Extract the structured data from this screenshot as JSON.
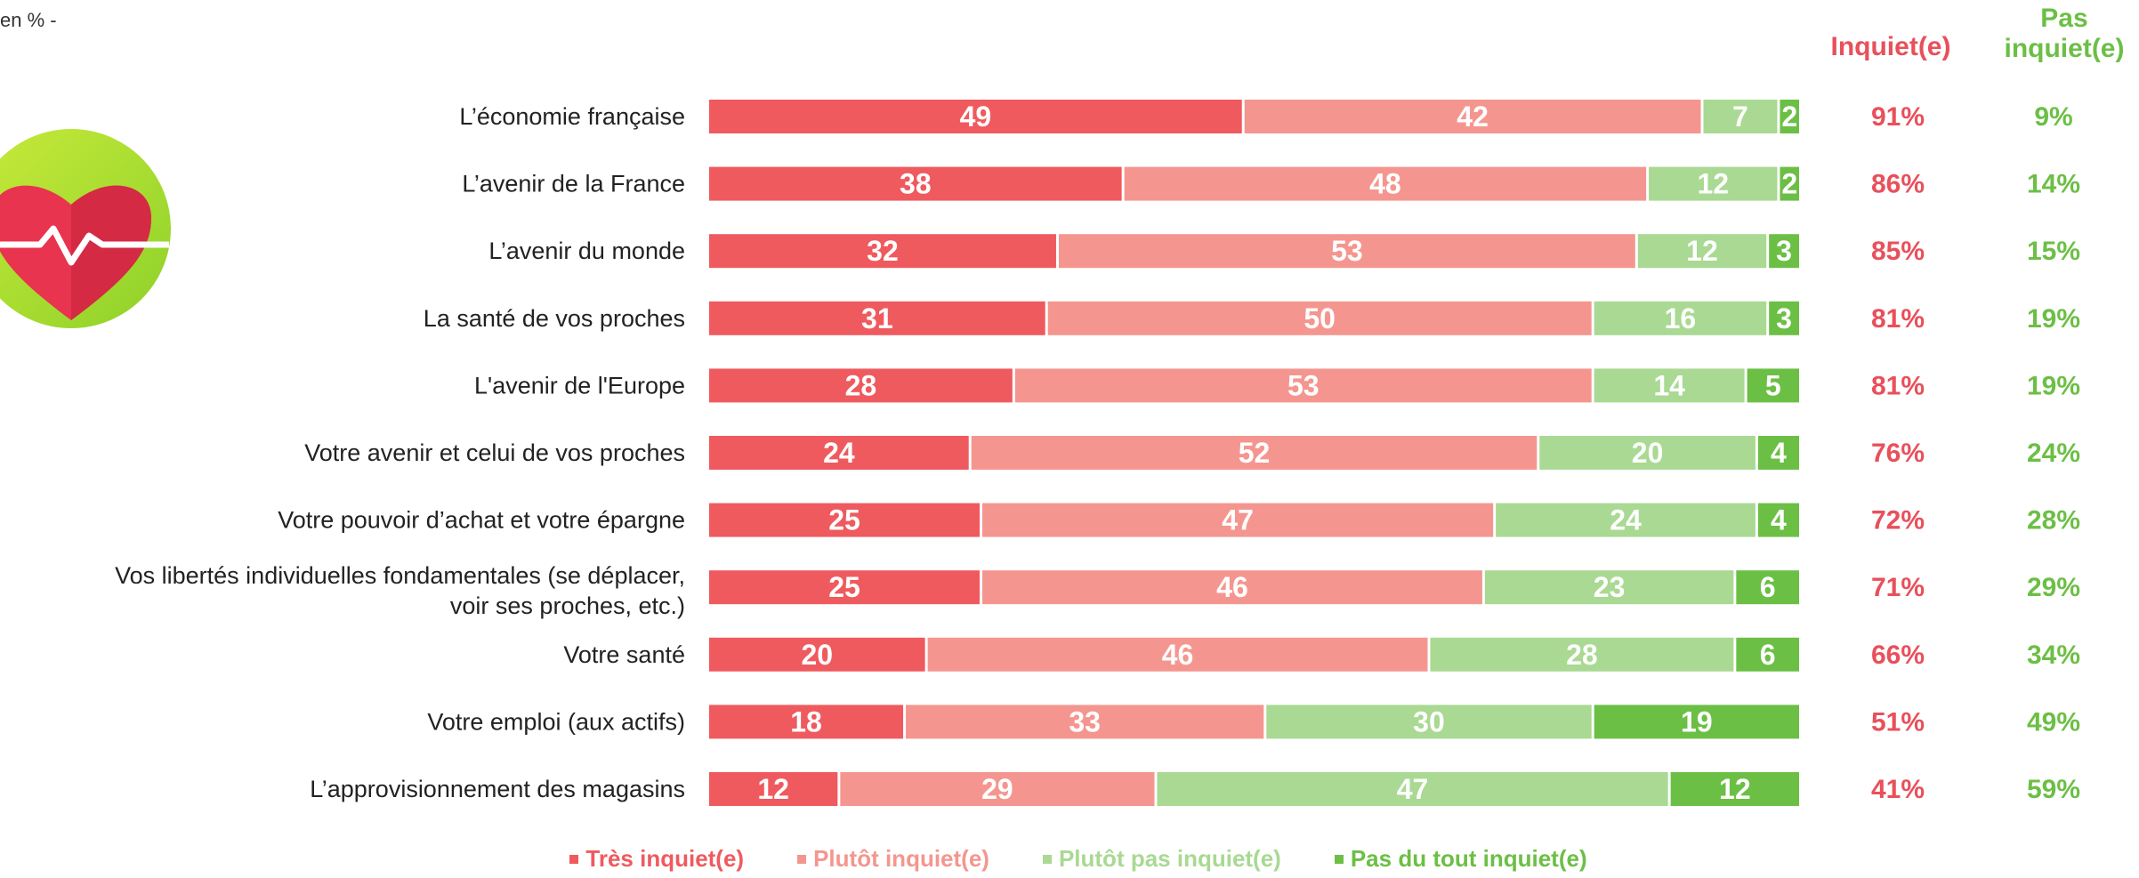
{
  "unit_note": "en % -",
  "col_headers": {
    "inquiet": "Inquiet(e)",
    "pas_inquiet": "Pas\ninquiet(e)"
  },
  "colors": {
    "tres_inquiet": "#ef5a5f",
    "plutot_inquiet": "#f4968f",
    "plutot_pas_inquiet": "#a9d992",
    "pas_du_tout_inquiet": "#6cbf45",
    "inquiet_text": "#e8505b",
    "pas_inquiet_text": "#6cbf45"
  },
  "legend": [
    {
      "label": "Très inquiet(e)",
      "color": "#ef5a5f"
    },
    {
      "label": "Plutôt inquiet(e)",
      "color": "#f4968f"
    },
    {
      "label": "Plutôt pas inquiet(e)",
      "color": "#a9d992"
    },
    {
      "label": "Pas du tout inquiet(e)",
      "color": "#6cbf45"
    }
  ],
  "chart_data": {
    "type": "bar",
    "orientation": "horizontal-stacked",
    "categories": [
      "L’économie française",
      "L’avenir de la France",
      "L’avenir du monde",
      "La santé de vos proches",
      "L'avenir de l'Europe",
      "Votre avenir et celui de vos proches",
      "Votre pouvoir d’achat et votre épargne",
      "Vos libertés individuelles fondamentales (se déplacer, voir ses proches, etc.)",
      "Votre santé",
      "Votre emploi (aux actifs)",
      "L’approvisionnement des magasins"
    ],
    "series": [
      {
        "name": "Très inquiet(e)",
        "values": [
          49,
          38,
          32,
          31,
          28,
          24,
          25,
          25,
          20,
          18,
          12
        ]
      },
      {
        "name": "Plutôt inquiet(e)",
        "values": [
          42,
          48,
          53,
          50,
          53,
          52,
          47,
          46,
          46,
          33,
          29
        ]
      },
      {
        "name": "Plutôt pas inquiet(e)",
        "values": [
          7,
          12,
          12,
          16,
          14,
          20,
          24,
          23,
          28,
          30,
          47
        ]
      },
      {
        "name": "Pas du tout inquiet(e)",
        "values": [
          2,
          2,
          3,
          3,
          5,
          4,
          4,
          6,
          6,
          19,
          12
        ]
      }
    ],
    "totals_inquiet": [
      "91%",
      "86%",
      "85%",
      "81%",
      "81%",
      "76%",
      "72%",
      "71%",
      "66%",
      "51%",
      "41%"
    ],
    "totals_pas_inquiet": [
      "9%",
      "14%",
      "15%",
      "19%",
      "19%",
      "24%",
      "28%",
      "29%",
      "34%",
      "49%",
      "59%"
    ],
    "legend_position": "bottom"
  }
}
